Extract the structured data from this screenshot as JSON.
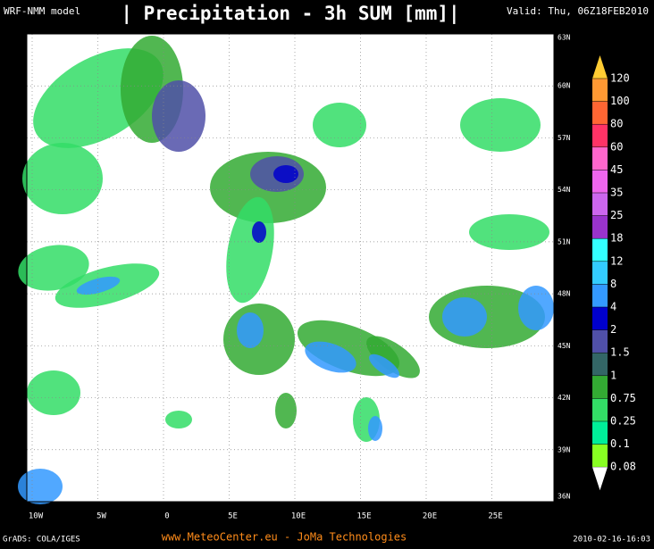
{
  "header": {
    "model": "WRF-NMM model",
    "title": "| Precipitation - 3h SUM [mm]|",
    "valid": "Valid: Thu, 06Z18FEB2010"
  },
  "map": {
    "lat_labels": [
      "63N",
      "60N",
      "57N",
      "54N",
      "51N",
      "48N",
      "45N",
      "42N",
      "39N",
      "36N"
    ],
    "lon_labels": [
      "10W",
      "5W",
      "0",
      "5E",
      "10E",
      "15E",
      "20E",
      "25E"
    ]
  },
  "legend": {
    "levels": [
      {
        "label": "120",
        "color": "#ffcc33"
      },
      {
        "label": "100",
        "color": "#ff9933"
      },
      {
        "label": "80",
        "color": "#ff6633"
      },
      {
        "label": "60",
        "color": "#ff3366"
      },
      {
        "label": "45",
        "color": "#ff66cc"
      },
      {
        "label": "35",
        "color": "#ee66ee"
      },
      {
        "label": "25",
        "color": "#cc66ee"
      },
      {
        "label": "18",
        "color": "#9933cc"
      },
      {
        "label": "12",
        "color": "#33ffff"
      },
      {
        "label": "8",
        "color": "#33ccff"
      },
      {
        "label": "4",
        "color": "#3399ff"
      },
      {
        "label": "2",
        "color": "#0000cc"
      },
      {
        "label": "1.5",
        "color": "#5050a8"
      },
      {
        "label": "1",
        "color": "#336666"
      },
      {
        "label": "0.75",
        "color": "#33aa33"
      },
      {
        "label": "0.25",
        "color": "#33dd66"
      },
      {
        "label": "0.1",
        "color": "#00ee99"
      },
      {
        "label": "0.08",
        "color": "#88ff22"
      }
    ]
  },
  "footer": {
    "credit": "GrADS: COLA/IGES",
    "source": "www.MeteoCenter.eu  -  JoMa Technologies",
    "timestamp": "2010-02-16-16:03"
  }
}
